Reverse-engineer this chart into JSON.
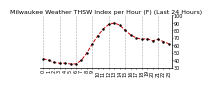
{
  "title": "Milwaukee Weather THSW Index per Hour (F) (Last 24 Hours)",
  "background_color": "#ffffff",
  "line_color": "#cc0000",
  "marker_color": "#000000",
  "hours": [
    0,
    1,
    2,
    3,
    4,
    5,
    6,
    7,
    8,
    9,
    10,
    11,
    12,
    13,
    14,
    15,
    16,
    17,
    18,
    19,
    20,
    21,
    22,
    23
  ],
  "values": [
    42,
    40,
    37,
    36,
    36,
    35,
    35,
    40,
    50,
    62,
    73,
    82,
    88,
    90,
    87,
    80,
    74,
    70,
    68,
    69,
    66,
    68,
    65,
    62
  ],
  "ylim": [
    30,
    100
  ],
  "yticks": [
    30,
    40,
    50,
    60,
    70,
    80,
    90,
    100
  ],
  "ytick_labels": [
    "30",
    "40",
    "50",
    "60",
    "70",
    "80",
    "90",
    "100"
  ],
  "xtick_hours": [
    0,
    1,
    2,
    3,
    4,
    5,
    6,
    7,
    8,
    9,
    10,
    11,
    12,
    13,
    14,
    15,
    16,
    17,
    18,
    19,
    20,
    21,
    22,
    23
  ],
  "grid_hours": [
    0,
    3,
    6,
    9,
    12,
    15,
    18,
    21
  ],
  "grid_color": "#aaaaaa",
  "title_fontsize": 4.5,
  "tick_fontsize": 3.5,
  "line_width": 0.7,
  "marker_size": 1.5
}
